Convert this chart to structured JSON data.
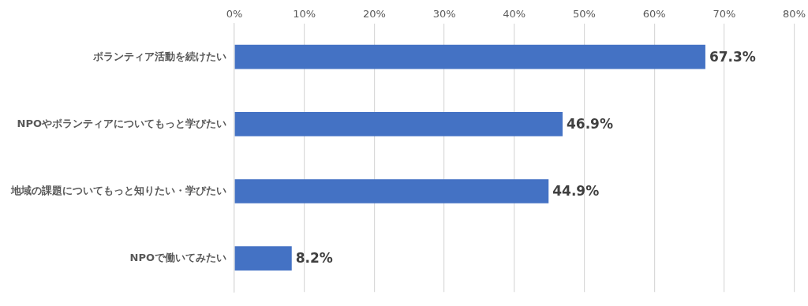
{
  "chart_data": {
    "type": "bar",
    "orientation": "horizontal",
    "categories": [
      "ボランティア活動を続けたい",
      "NPOやボランティアについてもっと学びたい",
      "地域の課題についてもっと知りたい・学びたい",
      "NPOで働いてみたい"
    ],
    "values": [
      67.3,
      46.9,
      44.9,
      8.2
    ],
    "value_labels": [
      "67.3%",
      "46.9%",
      "44.9%",
      "8.2%"
    ],
    "color": "#4472c4",
    "xlim": [
      0,
      80
    ],
    "xticks": [
      {
        "value": 0,
        "label": "0%"
      },
      {
        "value": 10,
        "label": "10%"
      },
      {
        "value": 20,
        "label": "20%"
      },
      {
        "value": 30,
        "label": "30%"
      },
      {
        "value": 40,
        "label": "40%"
      },
      {
        "value": 50,
        "label": "50%"
      },
      {
        "value": 60,
        "label": "60%"
      },
      {
        "value": 70,
        "label": "70%"
      },
      {
        "value": 80,
        "label": "80%"
      }
    ],
    "grid": "x",
    "legend": false
  }
}
